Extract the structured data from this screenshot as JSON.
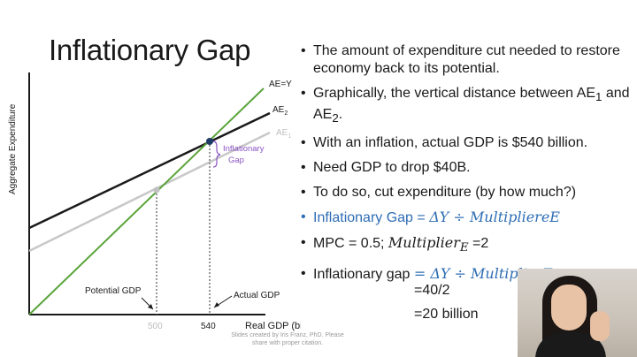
{
  "slide": {
    "title": "Inflationary Gap",
    "credit": "Slides created by Iris Franz, PhD. Please share with proper citation."
  },
  "diagram": {
    "y_axis_label": "Aggregate Expenditure",
    "x_axis_label": "Real GDP (billion)",
    "lines": {
      "ae_y": "AE=Y",
      "ae2": "AE",
      "ae2_sub": "2",
      "ae1": "AE",
      "ae1_sub": "1"
    },
    "gap_label_line1": "Inflationary",
    "gap_label_line2": "Gap",
    "potential_label": "Potential GDP",
    "actual_label": "Actual GDP",
    "tick_500": "500",
    "tick_540": "540",
    "colors": {
      "ae_y": "#5aa43a",
      "ae2": "#1a1a1a",
      "ae1": "#c8c8c8",
      "gap_brace": "#8c55c6",
      "point_ae2": "#1e3a66",
      "point_ae1": "#c0c0c0"
    }
  },
  "bullets": [
    {
      "text": "The amount of expenditure cut needed to restore economy back to its potential."
    },
    {
      "text_before": "Graphically, the vertical distance between AE",
      "sub1": "1",
      "mid": " and AE",
      "sub2": "2",
      "after": "."
    },
    {
      "text": "With an inflation, actual GDP is $540 billion."
    },
    {
      "text": "Need GDP to drop $40B."
    },
    {
      "text": "To do so, cut expenditure (by how much?)"
    },
    {
      "text": "Inflationary Gap = ",
      "math": "ΔY ÷ MultipliereE"
    },
    {
      "text": "MPC = 0.5; ",
      "math": "Multiplier",
      "math_sub": "E",
      "after": " =2"
    },
    {
      "text": "Inflationary gap ",
      "math": "= ΔY ÷ MultiplierE"
    }
  ],
  "calc": {
    "line1": "=40/2",
    "line2": "=20 billion"
  }
}
